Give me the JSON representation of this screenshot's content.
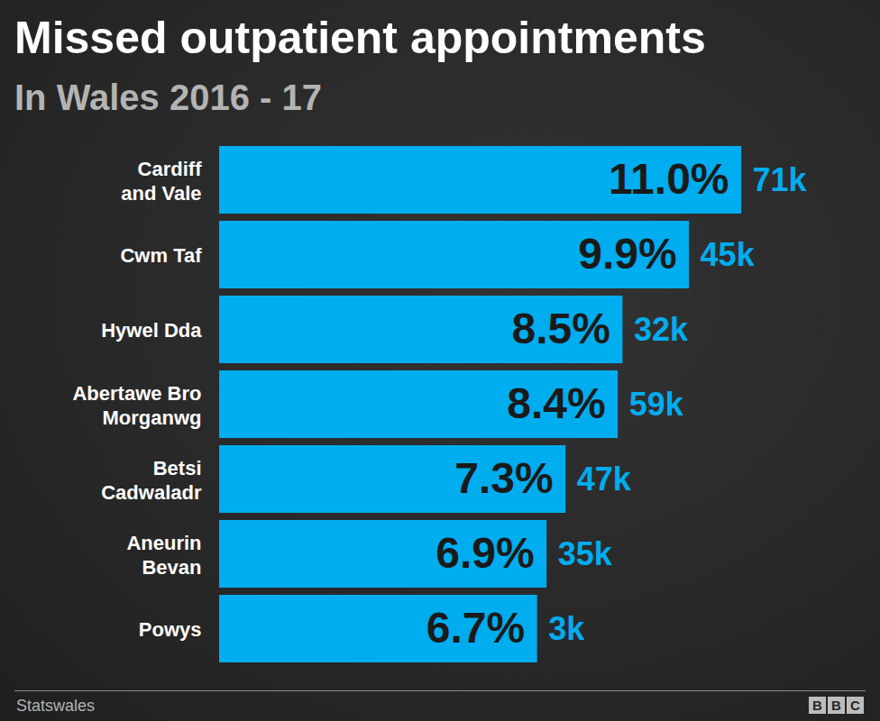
{
  "chart_data": {
    "type": "bar",
    "orientation": "horizontal",
    "title": "Missed outpatient appointments",
    "subtitle": "In Wales 2016 - 17",
    "categories": [
      "Cardiff and Vale",
      "Cwm Taf",
      "Hywel Dda",
      "Abertawe Bro Morganwg",
      "Betsi Cadwaladr",
      "Aneurin Bevan",
      "Powys"
    ],
    "values": [
      11.0,
      9.9,
      8.5,
      8.4,
      7.3,
      6.9,
      6.7
    ],
    "value_labels": [
      "11.0%",
      "9.9%",
      "8.5%",
      "8.4%",
      "7.3%",
      "6.9%",
      "6.7%"
    ],
    "counts": [
      71000,
      45000,
      32000,
      59000,
      47000,
      35000,
      3000
    ],
    "count_labels": [
      "71k",
      "45k",
      "32k",
      "59k",
      "47k",
      "35k",
      "3k"
    ],
    "color": "#00adef",
    "xlim": [
      0,
      11.0
    ],
    "data_labels": true,
    "tick_labels": false,
    "grid": false,
    "source": "Statswales",
    "logo": "BBC"
  }
}
